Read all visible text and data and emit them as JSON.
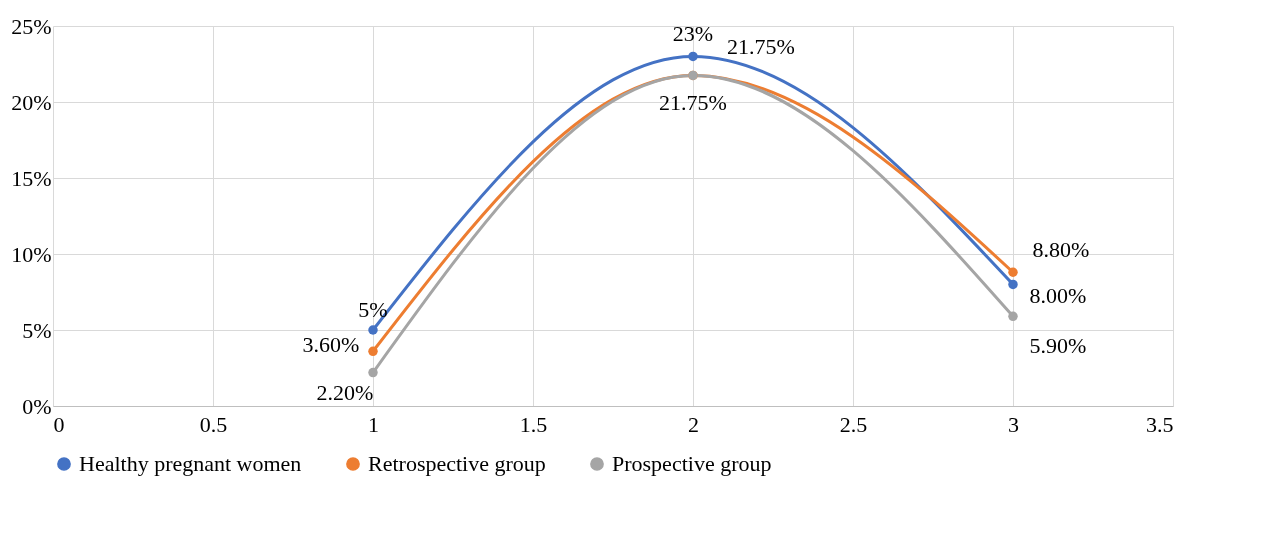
{
  "chart_data": {
    "type": "line",
    "x": [
      1,
      2,
      3
    ],
    "series": [
      {
        "name": "Healthy pregnant women",
        "color": "#4472c4",
        "values": [
          5,
          23,
          8
        ],
        "value_labels": [
          "5%",
          "23%",
          "8.00%"
        ]
      },
      {
        "name": "Retrospective group",
        "color": "#ed7d31",
        "values": [
          3.6,
          21.75,
          8.8
        ],
        "value_labels": [
          "3.60%",
          "21.75%",
          "8.80%"
        ]
      },
      {
        "name": "Prospective group",
        "color": "#a5a5a5",
        "values": [
          2.2,
          21.75,
          5.9
        ],
        "value_labels": [
          "2.20%",
          "21.75%",
          "5.90%"
        ]
      }
    ],
    "xlim": [
      0,
      3.5
    ],
    "xticks": [
      0,
      0.5,
      1,
      1.5,
      2,
      2.5,
      3,
      3.5
    ],
    "ylim": [
      0,
      25
    ],
    "yticks": [
      {
        "value": 0,
        "label": "0%"
      },
      {
        "value": 5,
        "label": "5%"
      },
      {
        "value": 10,
        "label": "10%"
      },
      {
        "value": 15,
        "label": "15%"
      },
      {
        "value": 20,
        "label": "20%"
      },
      {
        "value": 25,
        "label": "25%"
      }
    ],
    "grid": true,
    "legend": "bottom",
    "marker": "circle",
    "line_style": "solid"
  }
}
